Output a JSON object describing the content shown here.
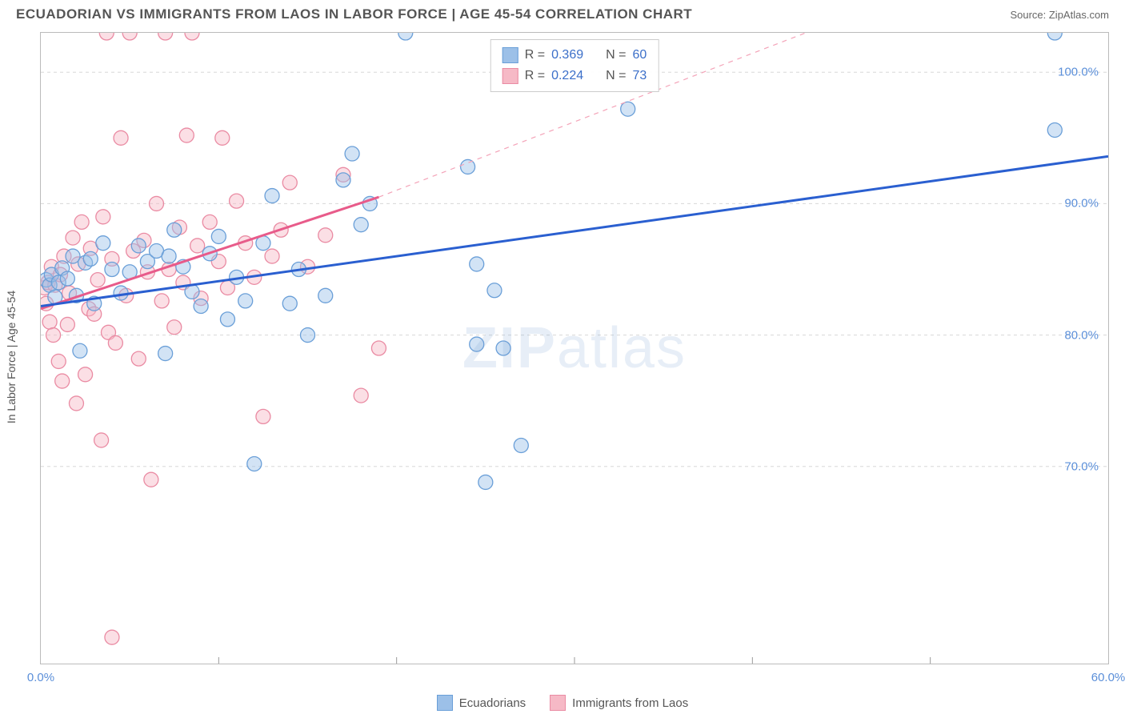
{
  "header": {
    "title": "ECUADORIAN VS IMMIGRANTS FROM LAOS IN LABOR FORCE | AGE 45-54 CORRELATION CHART",
    "source": "Source: ZipAtlas.com"
  },
  "ylabel": "In Labor Force | Age 45-54",
  "watermark_a": "ZIP",
  "watermark_b": "atlas",
  "legend_bottom": {
    "series1": "Ecuadorians",
    "series2": "Immigrants from Laos"
  },
  "stats": {
    "s1": {
      "r_label": "R =",
      "r": "0.369",
      "n_label": "N =",
      "n": "60"
    },
    "s2": {
      "r_label": "R =",
      "r": "0.224",
      "n_label": "N =",
      "n": "73"
    }
  },
  "chart": {
    "type": "scatter",
    "xlim": [
      0,
      60
    ],
    "ylim": [
      55,
      103
    ],
    "xticks": [
      0,
      60
    ],
    "xtick_labels": [
      "0.0%",
      "60.0%"
    ],
    "xtick_minor": [
      10,
      20,
      30,
      40,
      50
    ],
    "yticks": [
      70,
      80,
      90,
      100
    ],
    "ytick_labels": [
      "70.0%",
      "80.0%",
      "90.0%",
      "100.0%"
    ],
    "grid_color": "#d8d8d8",
    "background_color": "#ffffff",
    "marker_radius": 9,
    "marker_opacity": 0.45,
    "series": [
      {
        "name": "Ecuadorians",
        "fill": "#9cc0e8",
        "stroke": "#6a9fd8",
        "trend": {
          "color": "#2a5fd0",
          "width": 3,
          "x1": 0,
          "y1": 82.2,
          "x2": 60,
          "y2": 93.6
        },
        "points": [
          [
            0.3,
            84.2
          ],
          [
            0.5,
            83.8
          ],
          [
            0.6,
            84.6
          ],
          [
            0.8,
            82.9
          ],
          [
            1.0,
            84.0
          ],
          [
            1.2,
            85.1
          ],
          [
            1.5,
            84.3
          ],
          [
            1.8,
            86.0
          ],
          [
            2.0,
            83.0
          ],
          [
            2.2,
            78.8
          ],
          [
            2.5,
            85.5
          ],
          [
            2.8,
            85.8
          ],
          [
            3.0,
            82.4
          ],
          [
            3.5,
            87.0
          ],
          [
            4.0,
            85.0
          ],
          [
            4.5,
            83.2
          ],
          [
            5.0,
            84.8
          ],
          [
            5.5,
            86.8
          ],
          [
            6.0,
            85.6
          ],
          [
            6.5,
            86.4
          ],
          [
            7.0,
            78.6
          ],
          [
            7.2,
            86.0
          ],
          [
            7.5,
            88.0
          ],
          [
            8.0,
            85.2
          ],
          [
            8.5,
            83.3
          ],
          [
            9.0,
            82.2
          ],
          [
            9.5,
            86.2
          ],
          [
            10.0,
            87.5
          ],
          [
            10.5,
            81.2
          ],
          [
            11.0,
            84.4
          ],
          [
            11.5,
            82.6
          ],
          [
            12.0,
            70.2
          ],
          [
            12.5,
            87.0
          ],
          [
            13.0,
            90.6
          ],
          [
            14.0,
            82.4
          ],
          [
            14.5,
            85.0
          ],
          [
            15.0,
            80.0
          ],
          [
            16.0,
            83.0
          ],
          [
            17.0,
            91.8
          ],
          [
            17.5,
            93.8
          ],
          [
            18.0,
            88.4
          ],
          [
            18.5,
            90.0
          ],
          [
            20.5,
            103.0
          ],
          [
            24.0,
            92.8
          ],
          [
            24.5,
            85.4
          ],
          [
            24.5,
            79.3
          ],
          [
            25.0,
            68.8
          ],
          [
            25.5,
            83.4
          ],
          [
            26.0,
            79.0
          ],
          [
            27.0,
            71.6
          ],
          [
            33.0,
            97.2
          ],
          [
            57.0,
            103.0
          ],
          [
            57.0,
            95.6
          ]
        ]
      },
      {
        "name": "Immigrants from Laos",
        "fill": "#f6b9c6",
        "stroke": "#ea8ba3",
        "trend_solid": {
          "color": "#e85b8a",
          "width": 3,
          "x1": 0,
          "y1": 82.0,
          "x2": 19,
          "y2": 90.5
        },
        "trend_dash": {
          "color": "#f4a3b8",
          "width": 1.2,
          "x1": 19,
          "y1": 90.5,
          "x2": 43,
          "y2": 103
        },
        "points": [
          [
            0.2,
            83.6
          ],
          [
            0.3,
            82.4
          ],
          [
            0.4,
            84.0
          ],
          [
            0.5,
            81.0
          ],
          [
            0.6,
            85.2
          ],
          [
            0.7,
            80.0
          ],
          [
            0.8,
            83.8
          ],
          [
            1.0,
            78.0
          ],
          [
            1.1,
            84.6
          ],
          [
            1.2,
            76.5
          ],
          [
            1.3,
            86.0
          ],
          [
            1.5,
            80.8
          ],
          [
            1.6,
            83.2
          ],
          [
            1.8,
            87.4
          ],
          [
            2.0,
            74.8
          ],
          [
            2.1,
            85.4
          ],
          [
            2.3,
            88.6
          ],
          [
            2.5,
            77.0
          ],
          [
            2.7,
            82.0
          ],
          [
            2.8,
            86.6
          ],
          [
            3.0,
            81.6
          ],
          [
            3.2,
            84.2
          ],
          [
            3.4,
            72.0
          ],
          [
            3.5,
            89.0
          ],
          [
            3.7,
            103.0
          ],
          [
            3.8,
            80.2
          ],
          [
            4.0,
            85.8
          ],
          [
            4.2,
            79.4
          ],
          [
            4.5,
            95.0
          ],
          [
            4.8,
            83.0
          ],
          [
            5.0,
            103.0
          ],
          [
            5.2,
            86.4
          ],
          [
            5.5,
            78.2
          ],
          [
            5.8,
            87.2
          ],
          [
            6.0,
            84.8
          ],
          [
            6.2,
            69.0
          ],
          [
            6.5,
            90.0
          ],
          [
            6.8,
            82.6
          ],
          [
            7.0,
            103.0
          ],
          [
            7.2,
            85.0
          ],
          [
            7.5,
            80.6
          ],
          [
            7.8,
            88.2
          ],
          [
            8.0,
            84.0
          ],
          [
            8.2,
            95.2
          ],
          [
            8.5,
            103.0
          ],
          [
            8.8,
            86.8
          ],
          [
            9.0,
            82.8
          ],
          [
            9.5,
            88.6
          ],
          [
            10.0,
            85.6
          ],
          [
            10.2,
            95.0
          ],
          [
            10.5,
            83.6
          ],
          [
            11.0,
            90.2
          ],
          [
            11.5,
            87.0
          ],
          [
            12.0,
            84.4
          ],
          [
            12.5,
            73.8
          ],
          [
            13.0,
            86.0
          ],
          [
            13.5,
            88.0
          ],
          [
            14.0,
            91.6
          ],
          [
            15.0,
            85.2
          ],
          [
            16.0,
            87.6
          ],
          [
            17.0,
            92.2
          ],
          [
            18.0,
            75.4
          ],
          [
            19.0,
            79.0
          ],
          [
            4.0,
            57.0
          ]
        ]
      }
    ]
  },
  "colors": {
    "blue_fill": "#9cc0e8",
    "blue_stroke": "#6a9fd8",
    "pink_fill": "#f6b9c6",
    "pink_stroke": "#ea8ba3"
  }
}
